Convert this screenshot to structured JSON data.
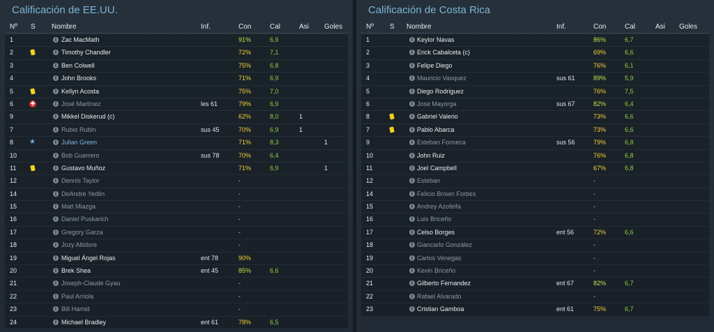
{
  "usa": {
    "title": "Calificación de EE.UU.",
    "headers": {
      "num": "Nº",
      "s": "S",
      "name": "Nombre",
      "inf": "Inf.",
      "con": "Con",
      "cal": "Cal",
      "asi": "Asi",
      "goles": "Goles"
    },
    "rows": [
      {
        "num": "1",
        "name": "Zac MacMath",
        "status": "",
        "inf": "",
        "con": "91%",
        "cal": "6,9",
        "asi": "",
        "goles": "",
        "style": "",
        "conc": "g"
      },
      {
        "num": "2",
        "name": "Timothy Chandler",
        "status": "yellow-card",
        "inf": "",
        "con": "72%",
        "cal": "7,1",
        "asi": "",
        "goles": "",
        "style": "",
        "conc": "y"
      },
      {
        "num": "3",
        "name": "Ben Colwell",
        "status": "",
        "inf": "",
        "con": "75%",
        "cal": "6,8",
        "asi": "",
        "goles": "",
        "style": "",
        "conc": "y"
      },
      {
        "num": "4",
        "name": "John Brooks",
        "status": "",
        "inf": "",
        "con": "71%",
        "cal": "6,9",
        "asi": "",
        "goles": "",
        "style": "",
        "conc": "y"
      },
      {
        "num": "5",
        "name": "Kellyn Acosta",
        "status": "yellow-card",
        "inf": "",
        "con": "75%",
        "cal": "7,0",
        "asi": "",
        "goles": "",
        "style": "",
        "conc": "y"
      },
      {
        "num": "6",
        "name": "José Martínez",
        "status": "injured",
        "inf": "les 61",
        "con": "79%",
        "cal": "6,9",
        "asi": "",
        "goles": "",
        "style": "sub",
        "conc": "y"
      },
      {
        "num": "9",
        "name": "Mikkel Diskerud (c)",
        "status": "",
        "inf": "",
        "con": "62%",
        "cal": "8,0",
        "asi": "1",
        "goles": "",
        "style": "",
        "conc": "y"
      },
      {
        "num": "7",
        "name": "Rubio Rubin",
        "status": "",
        "inf": "sus 45",
        "con": "70%",
        "cal": "6,9",
        "asi": "1",
        "goles": "",
        "style": "sub",
        "conc": "y"
      },
      {
        "num": "8",
        "name": "Julian Green",
        "status": "star",
        "inf": "",
        "con": "71%",
        "cal": "8,3",
        "asi": "",
        "goles": "1",
        "style": "star",
        "conc": "y"
      },
      {
        "num": "10",
        "name": "Bob Guerrero",
        "status": "",
        "inf": "sus 78",
        "con": "70%",
        "cal": "6,4",
        "asi": "",
        "goles": "",
        "style": "sub",
        "conc": "y"
      },
      {
        "num": "11",
        "name": "Gustavo Muñoz",
        "status": "yellow-card",
        "inf": "",
        "con": "71%",
        "cal": "6,9",
        "asi": "",
        "goles": "1",
        "style": "",
        "conc": "y"
      },
      {
        "num": "12",
        "name": "Dennis Taylor",
        "status": "",
        "inf": "",
        "con": "-",
        "cal": "",
        "asi": "",
        "goles": "",
        "style": "sub",
        "conc": "d"
      },
      {
        "num": "14",
        "name": "DeAndre Yedlin",
        "status": "",
        "inf": "",
        "con": "-",
        "cal": "",
        "asi": "",
        "goles": "",
        "style": "sub",
        "conc": "d"
      },
      {
        "num": "15",
        "name": "Matt Miazga",
        "status": "",
        "inf": "",
        "con": "-",
        "cal": "",
        "asi": "",
        "goles": "",
        "style": "sub",
        "conc": "d"
      },
      {
        "num": "16",
        "name": "Daniel Puskarich",
        "status": "",
        "inf": "",
        "con": "-",
        "cal": "",
        "asi": "",
        "goles": "",
        "style": "sub",
        "conc": "d"
      },
      {
        "num": "17",
        "name": "Gregory Garza",
        "status": "",
        "inf": "",
        "con": "-",
        "cal": "",
        "asi": "",
        "goles": "",
        "style": "sub",
        "conc": "d"
      },
      {
        "num": "18",
        "name": "Jozy Altidore",
        "status": "",
        "inf": "",
        "con": "-",
        "cal": "",
        "asi": "",
        "goles": "",
        "style": "sub",
        "conc": "d"
      },
      {
        "num": "19",
        "name": "Miguel Ángel Rojas",
        "status": "",
        "inf": "ent 78",
        "con": "90%",
        "cal": "",
        "asi": "",
        "goles": "",
        "style": "",
        "conc": "y"
      },
      {
        "num": "20",
        "name": "Brek Shea",
        "status": "",
        "inf": "ent 45",
        "con": "85%",
        "cal": "6,6",
        "asi": "",
        "goles": "",
        "style": "",
        "conc": "g"
      },
      {
        "num": "21",
        "name": "Joseph-Claude Gyau",
        "status": "",
        "inf": "",
        "con": "-",
        "cal": "",
        "asi": "",
        "goles": "",
        "style": "sub",
        "conc": "d"
      },
      {
        "num": "22",
        "name": "Paul Arriola",
        "status": "",
        "inf": "",
        "con": "-",
        "cal": "",
        "asi": "",
        "goles": "",
        "style": "sub",
        "conc": "d"
      },
      {
        "num": "23",
        "name": "Bill Hamid",
        "status": "",
        "inf": "",
        "con": "-",
        "cal": "",
        "asi": "",
        "goles": "",
        "style": "sub",
        "conc": "d"
      },
      {
        "num": "24",
        "name": "Michael Bradley",
        "status": "",
        "inf": "ent 61",
        "con": "78%",
        "cal": "6,5",
        "asi": "",
        "goles": "",
        "style": "",
        "conc": "y"
      }
    ]
  },
  "crc": {
    "title": "Calificación de Costa Rica",
    "headers": {
      "num": "Nº",
      "s": "S",
      "name": "Nombre",
      "inf": "Inf.",
      "con": "Con",
      "cal": "Cal",
      "asi": "Asi",
      "goles": "Goles"
    },
    "rows": [
      {
        "num": "1",
        "name": "Keylor Navas",
        "status": "",
        "inf": "",
        "con": "86%",
        "cal": "6,7",
        "asi": "",
        "goles": "",
        "style": "",
        "conc": "g"
      },
      {
        "num": "2",
        "name": "Erick Cabalceta (c)",
        "status": "",
        "inf": "",
        "con": "69%",
        "cal": "6,6",
        "asi": "",
        "goles": "",
        "style": "",
        "conc": "y"
      },
      {
        "num": "3",
        "name": "Felipe Diego",
        "status": "",
        "inf": "",
        "con": "76%",
        "cal": "6,1",
        "asi": "",
        "goles": "",
        "style": "",
        "conc": "y"
      },
      {
        "num": "4",
        "name": "Mauricio Vasquez",
        "status": "",
        "inf": "sus 61",
        "con": "89%",
        "cal": "5,9",
        "asi": "",
        "goles": "",
        "style": "sub",
        "conc": "g"
      },
      {
        "num": "5",
        "name": "Diego Rodriguez",
        "status": "",
        "inf": "",
        "con": "76%",
        "cal": "7,5",
        "asi": "",
        "goles": "",
        "style": "",
        "conc": "y"
      },
      {
        "num": "6",
        "name": "Jose Mayorga",
        "status": "",
        "inf": "sus 67",
        "con": "82%",
        "cal": "6,4",
        "asi": "",
        "goles": "",
        "style": "sub",
        "conc": "g"
      },
      {
        "num": "8",
        "name": "Gabriel Valerio",
        "status": "yellow-card",
        "inf": "",
        "con": "73%",
        "cal": "6,6",
        "asi": "",
        "goles": "",
        "style": "",
        "conc": "y"
      },
      {
        "num": "7",
        "name": "Pablo Abarca",
        "status": "yellow-card",
        "inf": "",
        "con": "73%",
        "cal": "6,6",
        "asi": "",
        "goles": "",
        "style": "",
        "conc": "y"
      },
      {
        "num": "9",
        "name": "Esteban Fonseca",
        "status": "",
        "inf": "sus 56",
        "con": "79%",
        "cal": "6,8",
        "asi": "",
        "goles": "",
        "style": "sub",
        "conc": "y"
      },
      {
        "num": "10",
        "name": "John Ruiz",
        "status": "",
        "inf": "",
        "con": "76%",
        "cal": "6,8",
        "asi": "",
        "goles": "",
        "style": "",
        "conc": "y"
      },
      {
        "num": "11",
        "name": "Joel Campbell",
        "status": "",
        "inf": "",
        "con": "67%",
        "cal": "6,8",
        "asi": "",
        "goles": "",
        "style": "",
        "conc": "y"
      },
      {
        "num": "12",
        "name": "Esteban",
        "status": "",
        "inf": "",
        "con": "-",
        "cal": "",
        "asi": "",
        "goles": "",
        "style": "sub",
        "conc": "d"
      },
      {
        "num": "14",
        "name": "Felicio Brown Forbes",
        "status": "",
        "inf": "",
        "con": "-",
        "cal": "",
        "asi": "",
        "goles": "",
        "style": "sub",
        "conc": "d"
      },
      {
        "num": "15",
        "name": "Andrey Azofeifa",
        "status": "",
        "inf": "",
        "con": "-",
        "cal": "",
        "asi": "",
        "goles": "",
        "style": "sub",
        "conc": "d"
      },
      {
        "num": "16",
        "name": "Luis Briceño",
        "status": "",
        "inf": "",
        "con": "-",
        "cal": "",
        "asi": "",
        "goles": "",
        "style": "sub",
        "conc": "d"
      },
      {
        "num": "17",
        "name": "Celso Borges",
        "status": "",
        "inf": "ent 56",
        "con": "72%",
        "cal": "6,6",
        "asi": "",
        "goles": "",
        "style": "",
        "conc": "y"
      },
      {
        "num": "18",
        "name": "Giancarlo González",
        "status": "",
        "inf": "",
        "con": "-",
        "cal": "",
        "asi": "",
        "goles": "",
        "style": "sub",
        "conc": "d"
      },
      {
        "num": "19",
        "name": "Carlos Venegas",
        "status": "",
        "inf": "",
        "con": "-",
        "cal": "",
        "asi": "",
        "goles": "",
        "style": "sub",
        "conc": "d"
      },
      {
        "num": "20",
        "name": "Kevin Briceño",
        "status": "",
        "inf": "",
        "con": "-",
        "cal": "",
        "asi": "",
        "goles": "",
        "style": "sub",
        "conc": "d"
      },
      {
        "num": "21",
        "name": "Gilberto Fernandez",
        "status": "",
        "inf": "ent 67",
        "con": "82%",
        "cal": "6,7",
        "asi": "",
        "goles": "",
        "style": "",
        "conc": "g"
      },
      {
        "num": "22",
        "name": "Rafael Alvarado",
        "status": "",
        "inf": "",
        "con": "-",
        "cal": "",
        "asi": "",
        "goles": "",
        "style": "sub",
        "conc": "d"
      },
      {
        "num": "23",
        "name": "Cristian Gamboa",
        "status": "",
        "inf": "ent 61",
        "con": "75%",
        "cal": "6,7",
        "asi": "",
        "goles": "",
        "style": "",
        "conc": "y"
      }
    ]
  },
  "colors": {
    "accent": "#7bb5d8",
    "con_green": "#bfe04a",
    "con_yellow": "#f1d23a",
    "cal_green": "#8fce45",
    "yellow_card": "#f2d21c",
    "injury": "#d9353b"
  }
}
